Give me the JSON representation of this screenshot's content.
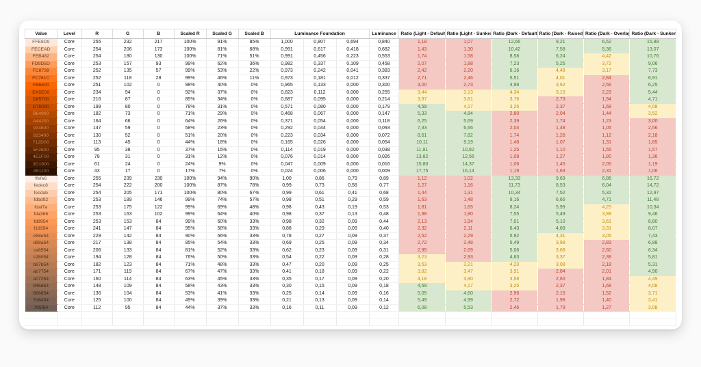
{
  "page": {
    "background": "#fafafa",
    "card_background": "#ffffff"
  },
  "status_colors": {
    "pass": {
      "bg": "#d8e7cf",
      "text": "#3e7d2d"
    },
    "warn": {
      "bg": "#fdf0c6",
      "text": "#c98b00"
    },
    "fail": {
      "bg": "#f4c8c3",
      "text": "#c0442c"
    }
  },
  "table": {
    "header_row": {
      "value": "Value",
      "level": "Level",
      "r": "R",
      "g": "G",
      "b": "B",
      "scaled_r": "Scaled R",
      "scaled_g": "Scaled G",
      "scaled_b": "Scaled B",
      "luminance_foundation": "Luminance Foundation",
      "luminance": "Luminance",
      "ratio_columns": [
        "Ratio (Light - Default)",
        "Ratio (Light - Sunken)",
        "Ratio (Dark - Default)",
        "Ratio (Dark - Raised)",
        "Ratio (Dark - Overlay)",
        "Ratio (Dark - Sunken,"
      ]
    },
    "empty_row_count": 2,
    "rows": [
      {
        "value": "FFE8D9",
        "level": "Core",
        "r": "255",
        "g": "232",
        "b": "217",
        "scaled_r": "100%",
        "scaled_g": "91%",
        "scaled_b": "85%",
        "lf": [
          "1,000",
          "0,807",
          "0,694"
        ],
        "luminance": "0,840",
        "ratios": [
          "1,18",
          "1,07",
          "12,66",
          "9,21",
          "6,52",
          "15,88"
        ],
        "ratio_states": "ffpppp"
      },
      {
        "value": "FECEAD",
        "level": "Core",
        "r": "254",
        "g": "206",
        "b": "173",
        "scaled_r": "100%",
        "scaled_g": "81%",
        "scaled_b": "68%",
        "lf": [
          "0,991",
          "0,617",
          "0,418"
        ],
        "luminance": "0,682",
        "ratios": [
          "1,43",
          "1,30",
          "10,42",
          "7,58",
          "5,36",
          "13,07"
        ],
        "ratio_states": "ffpppp"
      },
      {
        "value": "FEB482",
        "level": "Core",
        "r": "254",
        "g": "180",
        "b": "130",
        "scaled_r": "100%",
        "scaled_g": "71%",
        "scaled_b": "51%",
        "lf": [
          "0,991",
          "0,456",
          "0,223"
        ],
        "luminance": "0,553",
        "ratios": [
          "1,74",
          "1,58",
          "8,58",
          "6,24",
          "4,42",
          "10,76"
        ],
        "ratio_states": "ffppwp"
      },
      {
        "value": "FD9D5D",
        "level": "Core",
        "r": "253",
        "g": "157",
        "b": "93",
        "scaled_r": "99%",
        "scaled_g": "62%",
        "scaled_b": "36%",
        "lf": [
          "0,982",
          "0,337",
          "0,109"
        ],
        "luminance": "0,458",
        "ratios": [
          "2,07",
          "1,88",
          "7,23",
          "5,25",
          "3,72",
          "9,06"
        ],
        "ratio_states": "ffppwp"
      },
      {
        "value": "FC8739",
        "level": "Core",
        "r": "252",
        "g": "135",
        "b": "57",
        "scaled_r": "99%",
        "scaled_g": "53%",
        "scaled_b": "22%",
        "lf": [
          "0,973",
          "0,242",
          "0,041"
        ],
        "luminance": "0,383",
        "ratios": [
          "2,42",
          "2,20",
          "6,16",
          "4,48",
          "3,17",
          "7,73"
        ],
        "ratio_states": "ffpwwp"
      },
      {
        "value": "FC761C",
        "level": "Core",
        "r": "252",
        "g": "118",
        "b": "28",
        "scaled_r": "99%",
        "scaled_g": "46%",
        "scaled_b": "11%",
        "lf": [
          "0,973",
          "0,181",
          "0,012"
        ],
        "luminance": "0,337",
        "ratios": [
          "2,71",
          "2,46",
          "5,51",
          "4,01",
          "2,84",
          "6,91"
        ],
        "ratio_states": "ffpwfp"
      },
      {
        "value": "FB6600",
        "level": "Core",
        "r": "251",
        "g": "102",
        "b": "0",
        "scaled_r": "98%",
        "scaled_g": "40%",
        "scaled_b": "0%",
        "lf": [
          "0,965",
          "0,133",
          "0,000"
        ],
        "luminance": "0,300",
        "ratios": [
          "3,00",
          "2,73",
          "4,98",
          "3,62",
          "2,56",
          "6,25"
        ],
        "ratio_states": "ffpwfp"
      },
      {
        "value": "EA5E00",
        "level": "Core",
        "r": "234",
        "g": "94",
        "b": "0",
        "scaled_r": "92%",
        "scaled_g": "37%",
        "scaled_b": "0%",
        "lf": [
          "0,823",
          "0,112",
          "0,000"
        ],
        "luminance": "0,255",
        "ratios": [
          "3,44",
          "3,13",
          "4,34",
          "3,15",
          "2,23",
          "5,44"
        ],
        "ratio_states": "wwwwfp"
      },
      {
        "value": "D85700",
        "level": "Core",
        "r": "216",
        "g": "87",
        "b": "0",
        "scaled_r": "85%",
        "scaled_g": "34%",
        "scaled_b": "0%",
        "lf": [
          "0,687",
          "0,095",
          "0,000"
        ],
        "luminance": "0,214",
        "ratios": [
          "3,97",
          "3,61",
          "3,76",
          "2,73",
          "1,94",
          "4,71"
        ],
        "ratio_states": "wwwffp"
      },
      {
        "value": "C75000",
        "level": "Core",
        "r": "199",
        "g": "80",
        "b": "0",
        "scaled_r": "78%",
        "scaled_g": "31%",
        "scaled_b": "0%",
        "lf": [
          "0,571",
          "0,080",
          "0,000"
        ],
        "luminance": "0,179",
        "ratios": [
          "4,59",
          "4,17",
          "3,26",
          "2,37",
          "1,68",
          "4,08"
        ],
        "ratio_states": "pwwffw"
      },
      {
        "value": "B64900",
        "level": "Core",
        "r": "182",
        "g": "73",
        "b": "0",
        "scaled_r": "71%",
        "scaled_g": "29%",
        "scaled_b": "0%",
        "lf": [
          "0,468",
          "0,067",
          "0,000"
        ],
        "luminance": "0,147",
        "ratios": [
          "5,33",
          "4,84",
          "2,80",
          "2,04",
          "1,44",
          "3,52"
        ],
        "ratio_states": "ppfffw"
      },
      {
        "value": "A44200",
        "level": "Core",
        "r": "164",
        "g": "66",
        "b": "0",
        "scaled_r": "64%",
        "scaled_g": "26%",
        "scaled_b": "0%",
        "lf": [
          "0,371",
          "0,054",
          "0,000"
        ],
        "luminance": "0,118",
        "ratios": [
          "6,25",
          "5,69",
          "2,39",
          "1,74",
          "1,23",
          "3,00"
        ],
        "ratio_states": "ppffff"
      },
      {
        "value": "933800",
        "level": "Core",
        "r": "147",
        "g": "59",
        "b": "0",
        "scaled_r": "58%",
        "scaled_g": "23%",
        "scaled_b": "0%",
        "lf": [
          "0,292",
          "0,044",
          "0,000"
        ],
        "luminance": "0,093",
        "ratios": [
          "7,33",
          "6,66",
          "2,04",
          "1,48",
          "1,05",
          "2,56"
        ],
        "ratio_states": "ppffff"
      },
      {
        "value": "823400",
        "level": "Core",
        "r": "130",
        "g": "52",
        "b": "0",
        "scaled_r": "51%",
        "scaled_g": "20%",
        "scaled_b": "0%",
        "lf": [
          "0,223",
          "0,034",
          "0,000"
        ],
        "luminance": "0,072",
        "ratios": [
          "8,61",
          "7,82",
          "1,74",
          "1,26",
          "1,12",
          "2,18"
        ],
        "ratio_states": "ppffff"
      },
      {
        "value": "712D00",
        "level": "Core",
        "r": "113",
        "g": "45",
        "b": "0",
        "scaled_r": "44%",
        "scaled_g": "18%",
        "scaled_b": "0%",
        "lf": [
          "0,165",
          "0,026",
          "0,000"
        ],
        "luminance": "0,054",
        "ratios": [
          "10,11",
          "9,19",
          "1,48",
          "1,07",
          "1,31",
          "1,85"
        ],
        "ratio_states": "ppffff"
      },
      {
        "value": "5F2600",
        "level": "Core",
        "r": "95",
        "g": "38",
        "b": "0",
        "scaled_r": "37%",
        "scaled_g": "15%",
        "scaled_b": "0%",
        "lf": [
          "0,114",
          "0,019",
          "0,000"
        ],
        "luminance": "0,038",
        "ratios": [
          "11,91",
          "10,82",
          "1,25",
          "1,10",
          "1,55",
          "1,57"
        ],
        "ratio_states": "ppffff"
      },
      {
        "value": "4E1F00",
        "level": "Core",
        "r": "78",
        "g": "31",
        "b": "0",
        "scaled_r": "31%",
        "scaled_g": "12%",
        "scaled_b": "0%",
        "lf": [
          "0,076",
          "0,014",
          "0,000"
        ],
        "luminance": "0,026",
        "ratios": [
          "13,82",
          "12,56",
          "1,08",
          "1,27",
          "1,80",
          "1,36"
        ],
        "ratio_states": "ppffff"
      },
      {
        "value": "3D1800",
        "level": "Core",
        "r": "61",
        "g": "24",
        "b": "0",
        "scaled_r": "24%",
        "scaled_g": "9%",
        "scaled_b": "0%",
        "lf": [
          "0,047",
          "0,009",
          "0,000"
        ],
        "luminance": "0,016",
        "ratios": [
          "15,80",
          "14,37",
          "1,06",
          "1,45",
          "2,05",
          "1,19"
        ],
        "ratio_states": "ppffff"
      },
      {
        "value": "2B1100",
        "level": "Core",
        "r": "43",
        "g": "17",
        "b": "0",
        "scaled_r": "17%",
        "scaled_g": "7%",
        "scaled_b": "0%",
        "lf": [
          "0,024",
          "0,006",
          "0,000"
        ],
        "luminance": "0,009",
        "ratios": [
          "17,75",
          "16,14",
          "1,19",
          "1,63",
          "2,31",
          "1,06"
        ],
        "ratio_states": "ppffff"
      },
      {
        "value": "ffefe6",
        "level": "Core",
        "r": "255",
        "g": "239",
        "b": "230",
        "scaled_r": "100%",
        "scaled_g": "94%",
        "scaled_b": "90%",
        "lf": [
          "1,00",
          "0,86",
          "0,79"
        ],
        "luminance": "0,89",
        "ratios": [
          "1,12",
          "1,02",
          "13,33",
          "9,69",
          "6,86",
          "16,72"
        ],
        "ratio_states": "ffpppp"
      },
      {
        "value": "fedec8",
        "level": "Core",
        "r": "254",
        "g": "222",
        "b": "200",
        "scaled_r": "100%",
        "scaled_g": "87%",
        "scaled_b": "78%",
        "lf": [
          "0,99",
          "0,73",
          "0,58"
        ],
        "luminance": "0,77",
        "ratios": [
          "1,27",
          "1,16",
          "11,73",
          "8,53",
          "6,04",
          "14,72"
        ],
        "ratio_states": "ffpppp"
      },
      {
        "value": "fecdab",
        "level": "Core",
        "r": "254",
        "g": "205",
        "b": "171",
        "scaled_r": "100%",
        "scaled_g": "80%",
        "scaled_b": "67%",
        "lf": [
          "0,99",
          "0,61",
          "0,41"
        ],
        "luminance": "0,68",
        "ratios": [
          "1,44",
          "1,31",
          "10,34",
          "7,52",
          "5,32",
          "12,97"
        ],
        "ratio_states": "ffpppp"
      },
      {
        "value": "fdbd92",
        "level": "Core",
        "r": "253",
        "g": "189",
        "b": "146",
        "scaled_r": "99%",
        "scaled_g": "74%",
        "scaled_b": "57%",
        "lf": [
          "0,98",
          "0,51",
          "0,29"
        ],
        "luminance": "0,59",
        "ratios": [
          "1,63",
          "1,48",
          "9,16",
          "6,66",
          "4,71",
          "11,48"
        ],
        "ratio_states": "ffpppp"
      },
      {
        "value": "fdaf7a",
        "level": "Core",
        "r": "253",
        "g": "175",
        "b": "122",
        "scaled_r": "99%",
        "scaled_g": "69%",
        "scaled_b": "48%",
        "lf": [
          "0,98",
          "0,43",
          "0,19"
        ],
        "luminance": "0,53",
        "ratios": [
          "1,81",
          "1,65",
          "8,24",
          "5,99",
          "4,25",
          "10,34"
        ],
        "ratio_states": "ffppwp"
      },
      {
        "value": "fda366",
        "level": "Core",
        "r": "253",
        "g": "163",
        "b": "102",
        "scaled_r": "99%",
        "scaled_g": "64%",
        "scaled_b": "40%",
        "lf": [
          "0,98",
          "0,37",
          "0,13"
        ],
        "luminance": "0,48",
        "ratios": [
          "1,98",
          "1,80",
          "7,55",
          "5,49",
          "3,89",
          "9,46"
        ],
        "ratio_states": "ffppwp"
      },
      {
        "value": "fd9954",
        "level": "Core",
        "r": "253",
        "g": "153",
        "b": "84",
        "scaled_r": "99%",
        "scaled_g": "60%",
        "scaled_b": "33%",
        "lf": [
          "0,98",
          "0,32",
          "0,09"
        ],
        "luminance": "0,44",
        "ratios": [
          "2,13",
          "1,94",
          "7,01",
          "5,10",
          "3,61",
          "8,80"
        ],
        "ratio_states": "ffppwp"
      },
      {
        "value": "f19354",
        "level": "Core",
        "r": "241",
        "g": "147",
        "b": "84",
        "scaled_r": "95%",
        "scaled_g": "58%",
        "scaled_b": "33%",
        "lf": [
          "0,88",
          "0,29",
          "0,09"
        ],
        "luminance": "0,40",
        "ratios": [
          "2,32",
          "2,11",
          "6,43",
          "4,68",
          "3,31",
          "8,07"
        ],
        "ratio_states": "ffppwp"
      },
      {
        "value": "e58e54",
        "level": "Core",
        "r": "229",
        "g": "142",
        "b": "84",
        "scaled_r": "90%",
        "scaled_g": "56%",
        "scaled_b": "33%",
        "lf": [
          "0,78",
          "0,27",
          "0,09"
        ],
        "luminance": "0,37",
        "ratios": [
          "2,52",
          "2,29",
          "5,92",
          "4,31",
          "3,05",
          "7,43"
        ],
        "ratio_states": "ffpwwp"
      },
      {
        "value": "d98a54",
        "level": "Core",
        "r": "217",
        "g": "138",
        "b": "84",
        "scaled_r": "85%",
        "scaled_g": "54%",
        "scaled_b": "33%",
        "lf": [
          "0,69",
          "0,25",
          "0,09"
        ],
        "luminance": "0,34",
        "ratios": [
          "2,72",
          "2,48",
          "5,49",
          "3,99",
          "2,83",
          "6,88"
        ],
        "ratio_states": "ffpwfp"
      },
      {
        "value": "ce8554",
        "level": "Core",
        "r": "206",
        "g": "133",
        "b": "84",
        "scaled_r": "81%",
        "scaled_g": "52%",
        "scaled_b": "33%",
        "lf": [
          "0,62",
          "0,23",
          "0,09"
        ],
        "luminance": "0,31",
        "ratios": [
          "2,95",
          "2,69",
          "5,06",
          "3,68",
          "2,60",
          "6,34"
        ],
        "ratio_states": "ffpwfp"
      },
      {
        "value": "c28054",
        "level": "Core",
        "r": "194",
        "g": "128",
        "b": "84",
        "scaled_r": "76%",
        "scaled_g": "50%",
        "scaled_b": "33%",
        "lf": [
          "0,54",
          "0,22",
          "0,09"
        ],
        "luminance": "0,28",
        "ratios": [
          "3,23",
          "2,93",
          "4,63",
          "3,37",
          "2,38",
          "5,81"
        ],
        "ratio_states": "wfpwfp"
      },
      {
        "value": "b67b54",
        "level": "Core",
        "r": "182",
        "g": "123",
        "b": "84",
        "scaled_r": "71%",
        "scaled_g": "48%",
        "scaled_b": "33%",
        "lf": [
          "0,47",
          "0,20",
          "0,09"
        ],
        "luminance": "0,25",
        "ratios": [
          "3,53",
          "3,21",
          "4,23",
          "3,08",
          "2,18",
          "5,31"
        ],
        "ratio_states": "wwwwfp"
      },
      {
        "value": "ab7754",
        "level": "Core",
        "r": "171",
        "g": "119",
        "b": "84",
        "scaled_r": "67%",
        "scaled_g": "47%",
        "scaled_b": "33%",
        "lf": [
          "0,41",
          "0,18",
          "0,09"
        ],
        "luminance": "0,22",
        "ratios": [
          "3,82",
          "3,47",
          "3,91",
          "2,84",
          "2,01",
          "4,90"
        ],
        "ratio_states": "wwwffp"
      },
      {
        "value": "a07254",
        "level": "Core",
        "r": "160",
        "g": "114",
        "b": "84",
        "scaled_r": "63%",
        "scaled_g": "45%",
        "scaled_b": "33%",
        "lf": [
          "0,35",
          "0,17",
          "0,09"
        ],
        "luminance": "0,20",
        "ratios": [
          "4,18",
          "3,80",
          "3,58",
          "2,60",
          "1,84",
          "4,49"
        ],
        "ratio_states": "wwwffw"
      },
      {
        "value": "946d54",
        "level": "Core",
        "r": "148",
        "g": "109",
        "b": "84",
        "scaled_r": "58%",
        "scaled_g": "43%",
        "scaled_b": "33%",
        "lf": [
          "0,30",
          "0,15",
          "0,09"
        ],
        "luminance": "0,18",
        "ratios": [
          "4,59",
          "4,17",
          "3,25",
          "2,37",
          "1,68",
          "4,08"
        ],
        "ratio_states": "pwwffw"
      },
      {
        "value": "886854",
        "level": "Core",
        "r": "136",
        "g": "104",
        "b": "84",
        "scaled_r": "53%",
        "scaled_g": "41%",
        "scaled_b": "33%",
        "lf": [
          "0,25",
          "0,14",
          "0,09"
        ],
        "luminance": "0,16",
        "ratios": [
          "5,05",
          "4,60",
          "2,96",
          "2,15",
          "1,52",
          "3,71"
        ],
        "ratio_states": "ppfffw"
      },
      {
        "value": "7d6454",
        "level": "Core",
        "r": "125",
        "g": "100",
        "b": "84",
        "scaled_r": "49%",
        "scaled_g": "39%",
        "scaled_b": "33%",
        "lf": [
          "0,21",
          "0,13",
          "0,09"
        ],
        "luminance": "0,14",
        "ratios": [
          "5,49",
          "4,99",
          "2,72",
          "1,98",
          "1,40",
          "3,41"
        ],
        "ratio_states": "ppfffw"
      },
      {
        "value": "705f54",
        "level": "Core",
        "r": "112",
        "g": "95",
        "b": "84",
        "scaled_r": "44%",
        "scaled_g": "37%",
        "scaled_b": "33%",
        "lf": [
          "0,16",
          "0,11",
          "0,09"
        ],
        "luminance": "0,12",
        "ratios": [
          "6,08",
          "5,53",
          "2,46",
          "1,79",
          "1,27",
          "3,08"
        ],
        "ratio_states": "ppfffw"
      }
    ]
  }
}
